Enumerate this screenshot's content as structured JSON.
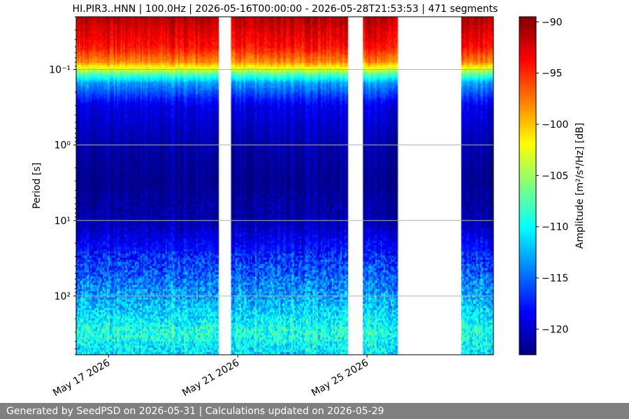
{
  "footer": {
    "text": "Generated by SeedPSD on 2026-05-31 | Calculations updated on 2026-05-29"
  },
  "chart_data": {
    "type": "heatmap",
    "title": "HI.PIR3..HNN | 100.0Hz | 2026-05-16T00:00:00 - 2026-05-28T21:53:53 | 471 segments",
    "xlabel": "",
    "ylabel": "Period [s]",
    "colorbar_label": "Amplitude [m²/s⁴/Hz] [dB]",
    "colormap": "jet",
    "y_scale": "log",
    "y_inverted": true,
    "ylim_period_s": [
      0.02,
      600
    ],
    "y_ticks": [
      {
        "value": 0.1,
        "label": "10⁻¹"
      },
      {
        "value": 1,
        "label": "10⁰"
      },
      {
        "value": 10,
        "label": "10¹"
      },
      {
        "value": 100,
        "label": "10²"
      }
    ],
    "xlim": [
      "2026-05-16T00:00:00",
      "2026-05-28T21:53:53"
    ],
    "x_ticks": [
      {
        "value": "2026-05-17",
        "label": "May 17 2026"
      },
      {
        "value": "2026-05-21",
        "label": "May 21 2026"
      },
      {
        "value": "2026-05-25",
        "label": "May 25 2026"
      }
    ],
    "color_range_db": [
      -122.5,
      -89.5
    ],
    "colorbar_ticks": [
      -90,
      -95,
      -100,
      -105,
      -110,
      -115,
      -120
    ],
    "grid": "horizontal",
    "data_gaps": [
      [
        "2026-05-20T10:00",
        "2026-05-20T19:00"
      ],
      [
        "2026-05-24T10:00",
        "2026-05-24T21:00"
      ],
      [
        "2026-05-25T23:00",
        "2026-05-27T22:00"
      ]
    ],
    "spectral_profile": [
      {
        "period_s": 0.02,
        "amplitude_db": -91
      },
      {
        "period_s": 0.05,
        "amplitude_db": -94
      },
      {
        "period_s": 0.08,
        "amplitude_db": -98
      },
      {
        "period_s": 0.11,
        "amplitude_db": -106
      },
      {
        "period_s": 0.15,
        "amplitude_db": -113
      },
      {
        "period_s": 0.3,
        "amplitude_db": -119
      },
      {
        "period_s": 1,
        "amplitude_db": -121
      },
      {
        "period_s": 3,
        "amplitude_db": -122
      },
      {
        "period_s": 10,
        "amplitude_db": -121
      },
      {
        "period_s": 30,
        "amplitude_db": -117
      },
      {
        "period_s": 100,
        "amplitude_db": -113
      },
      {
        "period_s": 300,
        "amplitude_db": -109
      },
      {
        "period_s": 600,
        "amplitude_db": -111
      }
    ]
  }
}
